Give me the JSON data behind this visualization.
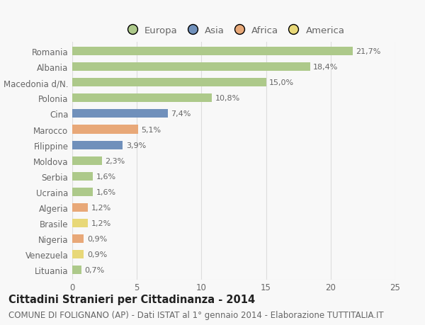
{
  "countries": [
    "Romania",
    "Albania",
    "Macedonia d/N.",
    "Polonia",
    "Cina",
    "Marocco",
    "Filippine",
    "Moldova",
    "Serbia",
    "Ucraina",
    "Algeria",
    "Brasile",
    "Nigeria",
    "Venezuela",
    "Lituania"
  ],
  "values": [
    21.7,
    18.4,
    15.0,
    10.8,
    7.4,
    5.1,
    3.9,
    2.3,
    1.6,
    1.6,
    1.2,
    1.2,
    0.9,
    0.9,
    0.7
  ],
  "labels": [
    "21,7%",
    "18,4%",
    "15,0%",
    "10,8%",
    "7,4%",
    "5,1%",
    "3,9%",
    "2,3%",
    "1,6%",
    "1,6%",
    "1,2%",
    "1,2%",
    "0,9%",
    "0,9%",
    "0,7%"
  ],
  "categories": [
    "Europa",
    "Europa",
    "Europa",
    "Europa",
    "Asia",
    "Africa",
    "Asia",
    "Europa",
    "Europa",
    "Europa",
    "Africa",
    "America",
    "Africa",
    "America",
    "Europa"
  ],
  "colors": {
    "Europa": "#adc98a",
    "Asia": "#7090bb",
    "Africa": "#e8a878",
    "America": "#e8d878"
  },
  "legend_order": [
    "Europa",
    "Asia",
    "Africa",
    "America"
  ],
  "xlim": [
    0,
    25
  ],
  "xticks": [
    0,
    5,
    10,
    15,
    20,
    25
  ],
  "title": "Cittadini Stranieri per Cittadinanza - 2014",
  "subtitle": "COMUNE DI FOLIGNANO (AP) - Dati ISTAT al 1° gennaio 2014 - Elaborazione TUTTITALIA.IT",
  "background_color": "#f8f8f8",
  "grid_color": "#dddddd",
  "bar_height": 0.55,
  "title_fontsize": 10.5,
  "subtitle_fontsize": 8.5,
  "label_fontsize": 8,
  "tick_fontsize": 8.5,
  "legend_fontsize": 9.5,
  "text_color": "#666666",
  "title_color": "#222222"
}
